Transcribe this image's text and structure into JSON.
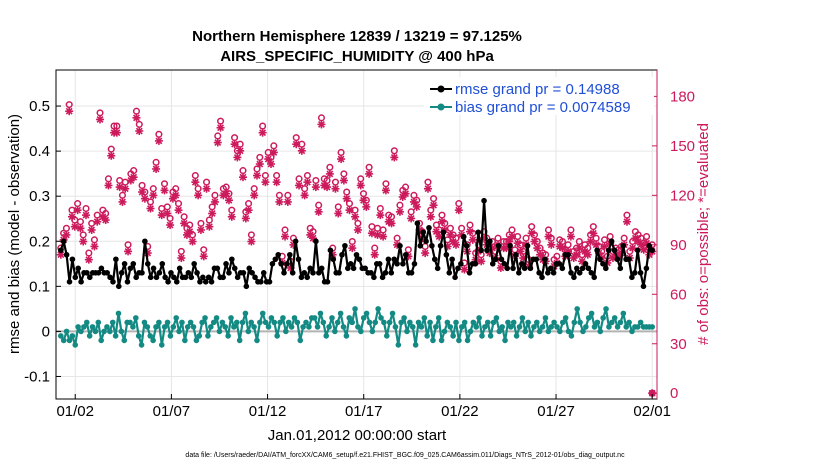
{
  "chart_data": {
    "type": "line",
    "title_line1": "Northern Hemisphere 12839 / 13219 = 97.125%",
    "title_line2": "AIRS_SPECIFIC_HUMIDITY @ 400 hPa",
    "ylabel": "rmse and bias (model - observation)",
    "ylabel_right": "# of obs: o=possible; *=evaluated",
    "xlabel": "Jan.01,2012 00:00:00 start",
    "footnote": "data file: /Users/raeder/DAI/ATM_forcXX/CAM6_setup/f.e21.FHIST_BGC.f09_025.CAM6assim.011/Diags_NTrS_2012-01/obs_diag_output.nc",
    "ylim": [
      -0.15,
      0.58
    ],
    "ylim_right": [
      -3.5,
      196
    ],
    "xlim": [
      0.0,
      31.25
    ],
    "yticks": [
      -0.1,
      0,
      0.1,
      0.2,
      0.3,
      0.4,
      0.5
    ],
    "ytick_labels": [
      "-0.1",
      "0",
      "0.1",
      "0.2",
      "0.3",
      "0.4",
      "0.5"
    ],
    "yticks_right": [
      0,
      30,
      60,
      90,
      120,
      150,
      180
    ],
    "ytick_labels_right": [
      "0",
      "30",
      "60",
      "90",
      "120",
      "150",
      "180"
    ],
    "xticks": [
      1,
      6,
      11,
      16,
      21,
      26,
      31
    ],
    "xtick_labels": [
      "01/02",
      "01/07",
      "01/12",
      "01/17",
      "01/22",
      "01/27",
      "02/01"
    ],
    "grid": true,
    "legend_position": "top-right",
    "legend": [
      "rmse grand pr = 0.14988",
      "bias grand pr = 0.0074589"
    ],
    "series": [
      {
        "name": "rmse grand pr = 0.14988",
        "color": "#000000",
        "marker": "circle",
        "values": [
          0.18,
          0.2,
          0.17,
          0.11,
          0.16,
          0.12,
          0.14,
          0.11,
          0.13,
          0.13,
          0.12,
          0.13,
          0.13,
          0.13,
          0.14,
          0.13,
          0.13,
          0.12,
          0.11,
          0.16,
          0.1,
          0.13,
          0.15,
          0.11,
          0.14,
          0.15,
          0.12,
          0.13,
          0.13,
          0.2,
          0.15,
          0.12,
          0.14,
          0.12,
          0.13,
          0.15,
          0.12,
          0.11,
          0.13,
          0.12,
          0.11,
          0.14,
          0.12,
          0.12,
          0.13,
          0.12,
          0.15,
          0.13,
          0.11,
          0.12,
          0.11,
          0.12,
          0.11,
          0.14,
          0.14,
          0.12,
          0.12,
          0.15,
          0.13,
          0.16,
          0.14,
          0.12,
          0.13,
          0.13,
          0.1,
          0.14,
          0.13,
          0.12,
          0.11,
          0.11,
          0.13,
          0.11,
          0.11,
          0.15,
          0.16,
          0.17,
          0.15,
          0.13,
          0.15,
          0.17,
          0.13,
          0.2,
          0.16,
          0.12,
          0.13,
          0.12,
          0.14,
          0.13,
          0.2,
          0.13,
          0.14,
          0.11,
          0.11,
          0.18,
          0.16,
          0.13,
          0.13,
          0.17,
          0.19,
          0.14,
          0.15,
          0.14,
          0.17,
          0.16,
          0.14,
          0.14,
          0.13,
          0.13,
          0.12,
          0.15,
          0.15,
          0.12,
          0.13,
          0.16,
          0.13,
          0.16,
          0.15,
          0.19,
          0.15,
          0.17,
          0.13,
          0.13,
          0.15,
          0.24,
          0.19,
          0.22,
          0.2,
          0.23,
          0.19,
          0.16,
          0.14,
          0.19,
          0.22,
          0.17,
          0.13,
          0.16,
          0.12,
          0.14,
          0.15,
          0.21,
          0.19,
          0.13,
          0.15,
          0.15,
          0.22,
          0.18,
          0.29,
          0.18,
          0.2,
          0.15,
          0.16,
          0.19,
          0.16,
          0.15,
          0.14,
          0.19,
          0.14,
          0.17,
          0.13,
          0.15,
          0.14,
          0.19,
          0.14,
          0.16,
          0.16,
          0.13,
          0.12,
          0.16,
          0.13,
          0.14,
          0.13,
          0.15,
          0.15,
          0.14,
          0.17,
          0.17,
          0.13,
          0.12,
          0.14,
          0.13,
          0.14,
          0.15,
          0.14,
          0.13,
          0.12,
          0.18,
          0.16,
          0.15,
          0.14,
          0.18,
          0.2,
          0.18,
          0.16,
          0.14,
          0.19,
          0.16,
          0.16,
          0.12,
          0.13,
          0.18,
          0.13,
          0.1,
          0.14,
          0.19,
          0.18
        ]
      },
      {
        "name": "bias grand pr = 0.0074589",
        "color": "#138a83",
        "marker": "circle",
        "values": [
          -0.01,
          -0.02,
          0.0,
          -0.02,
          -0.01,
          -0.03,
          0.01,
          0.0,
          0.01,
          0.02,
          -0.01,
          0.01,
          0.0,
          0.02,
          -0.02,
          0.0,
          0.01,
          0.0,
          0.02,
          -0.01,
          0.04,
          0.0,
          -0.02,
          0.02,
          0.02,
          0.01,
          0.03,
          -0.01,
          -0.03,
          0.02,
          0.01,
          -0.01,
          -0.02,
          0.01,
          0.02,
          -0.03,
          0.01,
          0.02,
          -0.01,
          0.01,
          0.03,
          0.0,
          0.02,
          -0.02,
          0.01,
          0.02,
          0.01,
          -0.02,
          -0.01,
          0.02,
          0.03,
          -0.01,
          0.01,
          0.02,
          0.03,
          0.0,
          0.02,
          0.01,
          -0.01,
          0.03,
          0.01,
          0.02,
          -0.02,
          0.02,
          0.04,
          0.0,
          0.02,
          0.01,
          -0.02,
          0.02,
          0.04,
          0.02,
          0.01,
          0.03,
          0.02,
          -0.01,
          0.02,
          0.03,
          0.0,
          0.02,
          0.01,
          0.03,
          0.02,
          -0.02,
          0.01,
          0.02,
          0.01,
          0.03,
          0.03,
          0.01,
          0.04,
          0.02,
          -0.01,
          0.01,
          0.03,
          0.0,
          0.02,
          0.04,
          0.01,
          -0.01,
          0.03,
          0.02,
          0.05,
          0.01,
          0.0,
          0.03,
          0.04,
          0.02,
          0.0,
          0.02,
          0.05,
          0.03,
          0.02,
          -0.01,
          0.02,
          0.04,
          0.01,
          -0.03,
          0.02,
          0.03,
          0.0,
          0.02,
          0.01,
          -0.03,
          0.02,
          0.01,
          0.03,
          -0.01,
          0.02,
          -0.02,
          0.01,
          0.03,
          -0.02,
          0.0,
          0.02,
          0.01,
          -0.01,
          0.02,
          -0.02,
          0.01,
          0.02,
          -0.02,
          0.0,
          0.02,
          0.01,
          0.03,
          -0.01,
          0.01,
          0.02,
          -0.01,
          0.02,
          0.03,
          0.0,
          0.01,
          -0.02,
          0.02,
          0.01,
          0.02,
          -0.01,
          0.01,
          0.03,
          0.0,
          0.02,
          -0.01,
          0.01,
          0.02,
          0.0,
          0.01,
          0.03,
          0.0,
          0.01,
          0.02,
          0.01,
          0.0,
          0.02,
          0.03,
          0.0,
          -0.01,
          0.02,
          0.05,
          0.02,
          0.0,
          0.01,
          0.03,
          0.04,
          0.01,
          0.02,
          0.0,
          0.03,
          0.05,
          0.01,
          0.02,
          0.03,
          0.01,
          0.02,
          0.04,
          0.01,
          0.02,
          0.0,
          0.01,
          0.01,
          0.02,
          0.01,
          0.01,
          0.01,
          0.01
        ]
      },
      {
        "name": "possible obs (o)",
        "color": "#cc1a5c",
        "marker": "o",
        "axis": "right",
        "values": [
          88,
          97,
          100,
          175,
          111,
          105,
          115,
          104,
          96,
          112,
          85,
          103,
          93,
          108,
          170,
          111,
          109,
          130,
          148,
          162,
          162,
          129,
          120,
          128,
          90,
          133,
          135,
          171,
          163,
          126,
          122,
          89,
          116,
          124,
          140,
          157,
          112,
          127,
          113,
          106,
          122,
          124,
          115,
          86,
          107,
          100,
          102,
          96,
          132,
          124,
          103,
          87,
          128,
          105,
          113,
          120,
          156,
          165,
          124,
          125,
          121,
          111,
          155,
          147,
          151,
          135,
          110,
          115,
          96,
          124,
          136,
          143,
          162,
          132,
          146,
          143,
          150,
          132,
          120,
          83,
          99,
          120,
          80,
          94,
          155,
          130,
          151,
          124,
          132,
          100,
          98,
          129,
          114,
          167,
          130,
          129,
          137,
          88,
          128,
          113,
          146,
          133,
          122,
          115,
          92,
          111,
          103,
          130,
          121,
          117,
          137,
          101,
          88,
          100,
          112,
          99,
          127,
          108,
          107,
          147,
          94,
          114,
          123,
          125,
          87,
          110,
          120,
          117,
          103,
          98,
          89,
          128,
          111,
          118,
          102,
          99,
          108,
          103,
          93,
          100,
          96,
          94,
          115,
          100,
          79,
          90,
          102,
          97,
          85,
          90,
          84,
          98,
          94,
          89,
          92,
          86,
          94,
          80,
          92,
          92,
          96,
          99,
          87,
          95,
          90,
          86,
          94,
          81,
          101,
          96,
          92,
          88,
          85,
          84,
          99,
          94,
          81,
          83,
          93,
          92,
          87,
          90,
          99,
          86,
          88,
          92,
          84,
          90,
          88,
          96,
          101,
          94,
          89,
          86,
          93,
          83,
          95,
          86,
          88,
          87,
          89,
          94,
          108,
          86,
          92,
          98,
          96,
          94,
          91,
          95,
          88,
          90
        ]
      },
      {
        "name": "evaluated obs (*)",
        "color": "#cc1a5c",
        "marker": "*",
        "axis": "right",
        "values": [
          84,
          93,
          96,
          171,
          107,
          101,
          111,
          100,
          92,
          108,
          81,
          99,
          89,
          104,
          166,
          107,
          105,
          126,
          144,
          158,
          158,
          125,
          116,
          124,
          86,
          129,
          131,
          167,
          159,
          122,
          118,
          85,
          112,
          120,
          136,
          153,
          108,
          123,
          109,
          102,
          118,
          120,
          111,
          82,
          103,
          96,
          98,
          92,
          128,
          120,
          99,
          83,
          124,
          101,
          109,
          116,
          152,
          161,
          120,
          121,
          117,
          107,
          151,
          143,
          147,
          131,
          106,
          111,
          92,
          120,
          132,
          139,
          158,
          128,
          142,
          139,
          146,
          128,
          116,
          79,
          95,
          116,
          76,
          90,
          151,
          126,
          147,
          120,
          128,
          96,
          94,
          125,
          110,
          163,
          126,
          125,
          133,
          84,
          124,
          109,
          142,
          129,
          118,
          111,
          88,
          107,
          99,
          126,
          117,
          113,
          133,
          97,
          84,
          96,
          108,
          95,
          123,
          104,
          103,
          143,
          90,
          110,
          119,
          121,
          83,
          106,
          116,
          113,
          99,
          94,
          85,
          124,
          107,
          114,
          98,
          95,
          104,
          99,
          89,
          96,
          92,
          90,
          111,
          96,
          75,
          86,
          98,
          93,
          81,
          86,
          80,
          94,
          90,
          85,
          88,
          82,
          90,
          76,
          88,
          88,
          92,
          95,
          83,
          91,
          86,
          82,
          90,
          77,
          97,
          92,
          88,
          84,
          81,
          80,
          95,
          90,
          77,
          79,
          89,
          88,
          83,
          86,
          95,
          82,
          84,
          88,
          80,
          86,
          84,
          92,
          97,
          90,
          85,
          82,
          89,
          79,
          91,
          82,
          84,
          83,
          85,
          90,
          104,
          82,
          88,
          94,
          92,
          90,
          87,
          91,
          84,
          86
        ]
      }
    ],
    "extra_points": [
      {
        "x": 31.0,
        "y_right": 0,
        "markers": [
          "o",
          "*"
        ]
      }
    ]
  }
}
